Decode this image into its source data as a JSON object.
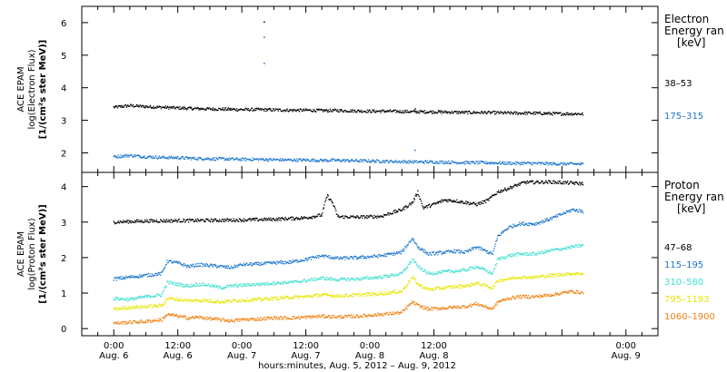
{
  "chart_data": [
    {
      "type": "scatter",
      "panel": "electron",
      "ylabel_lines": [
        "ACE EPAM",
        "log(Electron Flux)",
        "[1/(cm²s ster MeV)]"
      ],
      "ylim": [
        1.4,
        6.5
      ],
      "yticks": [
        2,
        3,
        4,
        5,
        6
      ],
      "legend_title_lines": [
        "Electron",
        "Energy ran",
        "[keV]"
      ],
      "series": [
        {
          "name": "38–53",
          "color": "#000000",
          "points": [
            [
              0,
              3.4
            ],
            [
              3,
              3.45
            ],
            [
              6,
              3.42
            ],
            [
              9,
              3.4
            ],
            [
              12,
              3.38
            ],
            [
              15,
              3.36
            ],
            [
              18,
              3.35
            ],
            [
              21,
              3.34
            ],
            [
              24,
              3.33
            ],
            [
              27,
              3.33
            ],
            [
              30,
              3.32
            ],
            [
              33,
              3.31
            ],
            [
              36,
              3.31
            ],
            [
              39,
              3.3
            ],
            [
              42,
              3.3
            ],
            [
              45,
              3.29
            ],
            [
              48,
              3.28
            ],
            [
              51,
              3.28
            ],
            [
              54,
              3.27
            ],
            [
              57,
              3.26
            ],
            [
              60,
              3.26
            ],
            [
              63,
              3.25
            ],
            [
              66,
              3.24
            ],
            [
              69,
              3.24
            ],
            [
              72,
              3.23
            ],
            [
              75,
              3.22
            ],
            [
              78,
              3.22
            ],
            [
              81,
              3.21
            ],
            [
              84,
              3.2
            ],
            [
              87,
              3.2
            ],
            [
              88,
              3.19
            ]
          ]
        },
        {
          "name": "175–315",
          "color": "#1874cd",
          "points": [
            [
              0,
              1.88
            ],
            [
              3,
              1.92
            ],
            [
              6,
              1.88
            ],
            [
              9,
              1.86
            ],
            [
              12,
              1.85
            ],
            [
              15,
              1.83
            ],
            [
              18,
              1.82
            ],
            [
              21,
              1.81
            ],
            [
              24,
              1.8
            ],
            [
              27,
              1.8
            ],
            [
              30,
              1.79
            ],
            [
              33,
              1.78
            ],
            [
              36,
              1.78
            ],
            [
              39,
              1.77
            ],
            [
              42,
              1.77
            ],
            [
              45,
              1.76
            ],
            [
              48,
              1.75
            ],
            [
              51,
              1.74
            ],
            [
              54,
              1.73
            ],
            [
              57,
              1.72
            ],
            [
              60,
              1.72
            ],
            [
              63,
              1.71
            ],
            [
              66,
              1.7
            ],
            [
              69,
              1.7
            ],
            [
              72,
              1.69
            ],
            [
              75,
              1.68
            ],
            [
              78,
              1.68
            ],
            [
              81,
              1.67
            ],
            [
              84,
              1.66
            ],
            [
              87,
              1.66
            ],
            [
              88,
              1.65
            ]
          ]
        }
      ],
      "spikes": [
        [
          28.2,
          6.02,
          "#000000"
        ],
        [
          28.2,
          5.55,
          "#1874cd"
        ],
        [
          28.2,
          4.75,
          "#1874cd"
        ],
        [
          56.5,
          2.08,
          "#1874cd"
        ],
        [
          56.5,
          3.35,
          "#000000"
        ]
      ]
    },
    {
      "type": "scatter",
      "panel": "proton",
      "ylabel_lines": [
        "ACE EPAM",
        "log(Proton Flux)",
        "[1/(cm²s ster MeV)]"
      ],
      "ylim": [
        -0.2,
        4.4
      ],
      "yticks": [
        0,
        1,
        2,
        3,
        4
      ],
      "legend_title_lines": [
        "Proton",
        "Energy ran",
        "[keV]"
      ],
      "series": [
        {
          "name": "47–68",
          "color": "#000000",
          "points": [
            [
              0,
              3.0
            ],
            [
              6,
              3.03
            ],
            [
              12,
              3.04
            ],
            [
              18,
              3.05
            ],
            [
              24,
              3.06
            ],
            [
              30,
              3.08
            ],
            [
              36,
              3.12
            ],
            [
              39,
              3.2
            ],
            [
              40,
              3.75
            ],
            [
              41,
              3.55
            ],
            [
              42,
              3.15
            ],
            [
              46,
              3.14
            ],
            [
              50,
              3.16
            ],
            [
              54,
              3.35
            ],
            [
              56,
              3.55
            ],
            [
              57,
              3.85
            ],
            [
              58,
              3.4
            ],
            [
              60,
              3.5
            ],
            [
              62,
              3.62
            ],
            [
              64,
              3.6
            ],
            [
              66,
              3.55
            ],
            [
              68,
              3.5
            ],
            [
              70,
              3.6
            ],
            [
              72,
              3.85
            ],
            [
              74,
              3.95
            ],
            [
              77,
              4.12
            ],
            [
              82,
              4.13
            ],
            [
              86,
              4.1
            ],
            [
              88,
              4.08
            ]
          ]
        },
        {
          "name": "115–195",
          "color": "#1874cd",
          "points": [
            [
              0,
              1.4
            ],
            [
              3,
              1.45
            ],
            [
              6,
              1.5
            ],
            [
              9,
              1.55
            ],
            [
              10,
              1.9
            ],
            [
              12,
              1.85
            ],
            [
              14,
              1.75
            ],
            [
              16,
              1.8
            ],
            [
              18,
              1.78
            ],
            [
              20,
              1.75
            ],
            [
              22,
              1.72
            ],
            [
              24,
              1.8
            ],
            [
              27,
              1.82
            ],
            [
              30,
              1.85
            ],
            [
              33,
              1.87
            ],
            [
              36,
              1.95
            ],
            [
              39,
              2.05
            ],
            [
              42,
              1.98
            ],
            [
              46,
              2.0
            ],
            [
              50,
              2.05
            ],
            [
              54,
              2.15
            ],
            [
              56,
              2.55
            ],
            [
              57,
              2.3
            ],
            [
              59,
              2.1
            ],
            [
              62,
              2.15
            ],
            [
              64,
              2.18
            ],
            [
              66,
              2.15
            ],
            [
              68,
              2.3
            ],
            [
              71,
              2.1
            ],
            [
              72,
              2.6
            ],
            [
              74,
              2.85
            ],
            [
              76,
              2.95
            ],
            [
              79,
              2.95
            ],
            [
              82,
              3.1
            ],
            [
              86,
              3.35
            ],
            [
              88,
              3.3
            ]
          ]
        },
        {
          "name": "310–580",
          "color": "#40e0d0",
          "points": [
            [
              0,
              0.85
            ],
            [
              3,
              0.82
            ],
            [
              6,
              0.9
            ],
            [
              9,
              0.95
            ],
            [
              10,
              1.3
            ],
            [
              12,
              1.25
            ],
            [
              14,
              1.2
            ],
            [
              16,
              1.25
            ],
            [
              18,
              1.22
            ],
            [
              20,
              1.15
            ],
            [
              22,
              1.2
            ],
            [
              24,
              1.22
            ],
            [
              27,
              1.25
            ],
            [
              30,
              1.28
            ],
            [
              33,
              1.3
            ],
            [
              36,
              1.35
            ],
            [
              39,
              1.42
            ],
            [
              42,
              1.38
            ],
            [
              46,
              1.4
            ],
            [
              50,
              1.45
            ],
            [
              54,
              1.55
            ],
            [
              56,
              1.95
            ],
            [
              57,
              1.75
            ],
            [
              59,
              1.55
            ],
            [
              62,
              1.6
            ],
            [
              64,
              1.62
            ],
            [
              66,
              1.65
            ],
            [
              68,
              1.75
            ],
            [
              71,
              1.55
            ],
            [
              72,
              1.95
            ],
            [
              74,
              2.05
            ],
            [
              76,
              2.1
            ],
            [
              79,
              2.1
            ],
            [
              82,
              2.2
            ],
            [
              86,
              2.3
            ],
            [
              88,
              2.35
            ]
          ]
        },
        {
          "name": "795–1193",
          "color": "#e8e600",
          "points": [
            [
              0,
              0.55
            ],
            [
              3,
              0.6
            ],
            [
              6,
              0.62
            ],
            [
              9,
              0.65
            ],
            [
              10,
              0.85
            ],
            [
              12,
              0.82
            ],
            [
              14,
              0.78
            ],
            [
              16,
              0.8
            ],
            [
              18,
              0.78
            ],
            [
              20,
              0.75
            ],
            [
              22,
              0.78
            ],
            [
              24,
              0.8
            ],
            [
              27,
              0.82
            ],
            [
              30,
              0.85
            ],
            [
              33,
              0.88
            ],
            [
              36,
              0.9
            ],
            [
              39,
              0.95
            ],
            [
              42,
              0.92
            ],
            [
              46,
              0.95
            ],
            [
              50,
              0.98
            ],
            [
              54,
              1.05
            ],
            [
              56,
              1.45
            ],
            [
              57,
              1.25
            ],
            [
              59,
              1.1
            ],
            [
              62,
              1.15
            ],
            [
              64,
              1.18
            ],
            [
              66,
              1.2
            ],
            [
              68,
              1.28
            ],
            [
              71,
              1.15
            ],
            [
              72,
              1.35
            ],
            [
              74,
              1.4
            ],
            [
              76,
              1.45
            ],
            [
              79,
              1.45
            ],
            [
              82,
              1.5
            ],
            [
              86,
              1.55
            ],
            [
              88,
              1.55
            ]
          ]
        },
        {
          "name": "1060–1900",
          "color": "#f08010",
          "points": [
            [
              0,
              0.15
            ],
            [
              3,
              0.18
            ],
            [
              6,
              0.2
            ],
            [
              9,
              0.25
            ],
            [
              10,
              0.4
            ],
            [
              12,
              0.35
            ],
            [
              14,
              0.3
            ],
            [
              16,
              0.32
            ],
            [
              18,
              0.28
            ],
            [
              20,
              0.25
            ],
            [
              22,
              0.22
            ],
            [
              24,
              0.25
            ],
            [
              27,
              0.27
            ],
            [
              30,
              0.3
            ],
            [
              33,
              0.3
            ],
            [
              36,
              0.32
            ],
            [
              39,
              0.35
            ],
            [
              42,
              0.33
            ],
            [
              46,
              0.35
            ],
            [
              50,
              0.4
            ],
            [
              54,
              0.45
            ],
            [
              56,
              0.75
            ],
            [
              57,
              0.65
            ],
            [
              59,
              0.55
            ],
            [
              62,
              0.58
            ],
            [
              64,
              0.6
            ],
            [
              66,
              0.62
            ],
            [
              68,
              0.7
            ],
            [
              71,
              0.55
            ],
            [
              72,
              0.75
            ],
            [
              74,
              0.85
            ],
            [
              76,
              0.9
            ],
            [
              79,
              0.9
            ],
            [
              82,
              0.95
            ],
            [
              86,
              1.05
            ],
            [
              88,
              1.0
            ]
          ]
        }
      ],
      "spikes": []
    }
  ],
  "x_axis": {
    "ticks": [
      {
        "label": "0:00",
        "date": "Aug. 6"
      },
      {
        "label": "12:00",
        "date": "Aug. 6"
      },
      {
        "label": "0:00",
        "date": "Aug. 7"
      },
      {
        "label": "12:00",
        "date": "Aug. 7"
      },
      {
        "label": "0:00",
        "date": "Aug. 8"
      },
      {
        "label": "12:00",
        "date": "Aug. 8"
      },
      {
        "label": "0:00",
        "date": "Aug. 9"
      }
    ],
    "xlim_hours": [
      -6,
      102
    ],
    "title": "hours:minutes, Aug.  5, 2012 – Aug.  9, 2012"
  }
}
